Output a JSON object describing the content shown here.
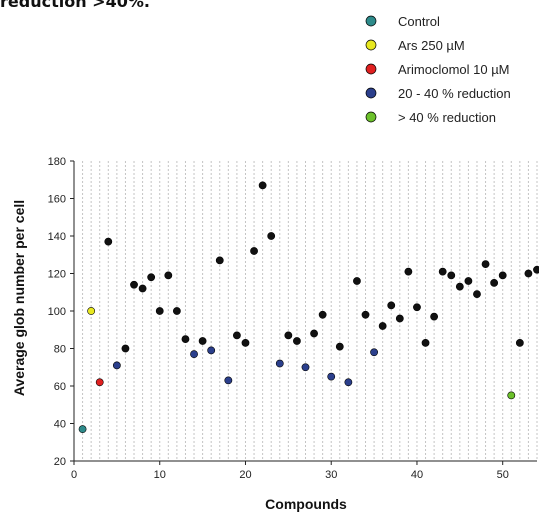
{
  "caption": "reduction >40%.",
  "chart_data": {
    "type": "scatter",
    "title": "",
    "xlabel": "Compounds",
    "ylabel": "Average glob number per cell",
    "xlim": [
      0,
      54
    ],
    "ylim": [
      20,
      180
    ],
    "x_ticks": [
      0,
      10,
      20,
      30,
      40,
      50
    ],
    "y_ticks": [
      20,
      40,
      60,
      80,
      100,
      120,
      140,
      160,
      180
    ],
    "grid": "vertical dashed lines",
    "legend_position": "top-right",
    "colors": {
      "control": "#2e8b8b",
      "ars": "#e8e820",
      "arimoclomol": "#e02020",
      "reduction_20_40": "#2b3f8c",
      "reduction_gt_40": "#6cc12b",
      "untreated": "#111111"
    },
    "series": [
      {
        "name": "Control",
        "color_key": "control",
        "points": [
          [
            1,
            37
          ]
        ]
      },
      {
        "name": "Ars 250 µM",
        "color_key": "ars",
        "points": [
          [
            2,
            100
          ]
        ]
      },
      {
        "name": "Arimoclomol 10 µM",
        "color_key": "arimoclomol",
        "points": [
          [
            3,
            62
          ]
        ]
      },
      {
        "name": "20 - 40 % reduction",
        "color_key": "reduction_20_40",
        "points": [
          [
            5,
            71
          ],
          [
            14,
            77
          ],
          [
            16,
            79
          ],
          [
            18,
            63
          ],
          [
            24,
            72
          ],
          [
            27,
            70
          ],
          [
            30,
            65
          ],
          [
            32,
            62
          ],
          [
            35,
            78
          ]
        ]
      },
      {
        "name": "> 40 % reduction",
        "color_key": "reduction_gt_40",
        "points": [
          [
            51,
            55
          ]
        ]
      },
      {
        "name": "",
        "color_key": "untreated",
        "points": [
          [
            4,
            137
          ],
          [
            6,
            80
          ],
          [
            7,
            114
          ],
          [
            8,
            112
          ],
          [
            9,
            118
          ],
          [
            10,
            100
          ],
          [
            11,
            119
          ],
          [
            12,
            100
          ],
          [
            13,
            85
          ],
          [
            15,
            84
          ],
          [
            17,
            127
          ],
          [
            19,
            87
          ],
          [
            20,
            83
          ],
          [
            21,
            132
          ],
          [
            22,
            167
          ],
          [
            23,
            140
          ],
          [
            25,
            87
          ],
          [
            26,
            84
          ],
          [
            28,
            88
          ],
          [
            29,
            98
          ],
          [
            31,
            81
          ],
          [
            33,
            116
          ],
          [
            34,
            98
          ],
          [
            36,
            92
          ],
          [
            37,
            103
          ],
          [
            38,
            96
          ],
          [
            39,
            121
          ],
          [
            40,
            102
          ],
          [
            41,
            83
          ],
          [
            42,
            97
          ],
          [
            43,
            121
          ],
          [
            44,
            119
          ],
          [
            45,
            113
          ],
          [
            46,
            116
          ],
          [
            47,
            109
          ],
          [
            48,
            125
          ],
          [
            49,
            115
          ],
          [
            50,
            119
          ],
          [
            52,
            83
          ],
          [
            53,
            120
          ],
          [
            54,
            122
          ]
        ]
      }
    ]
  }
}
